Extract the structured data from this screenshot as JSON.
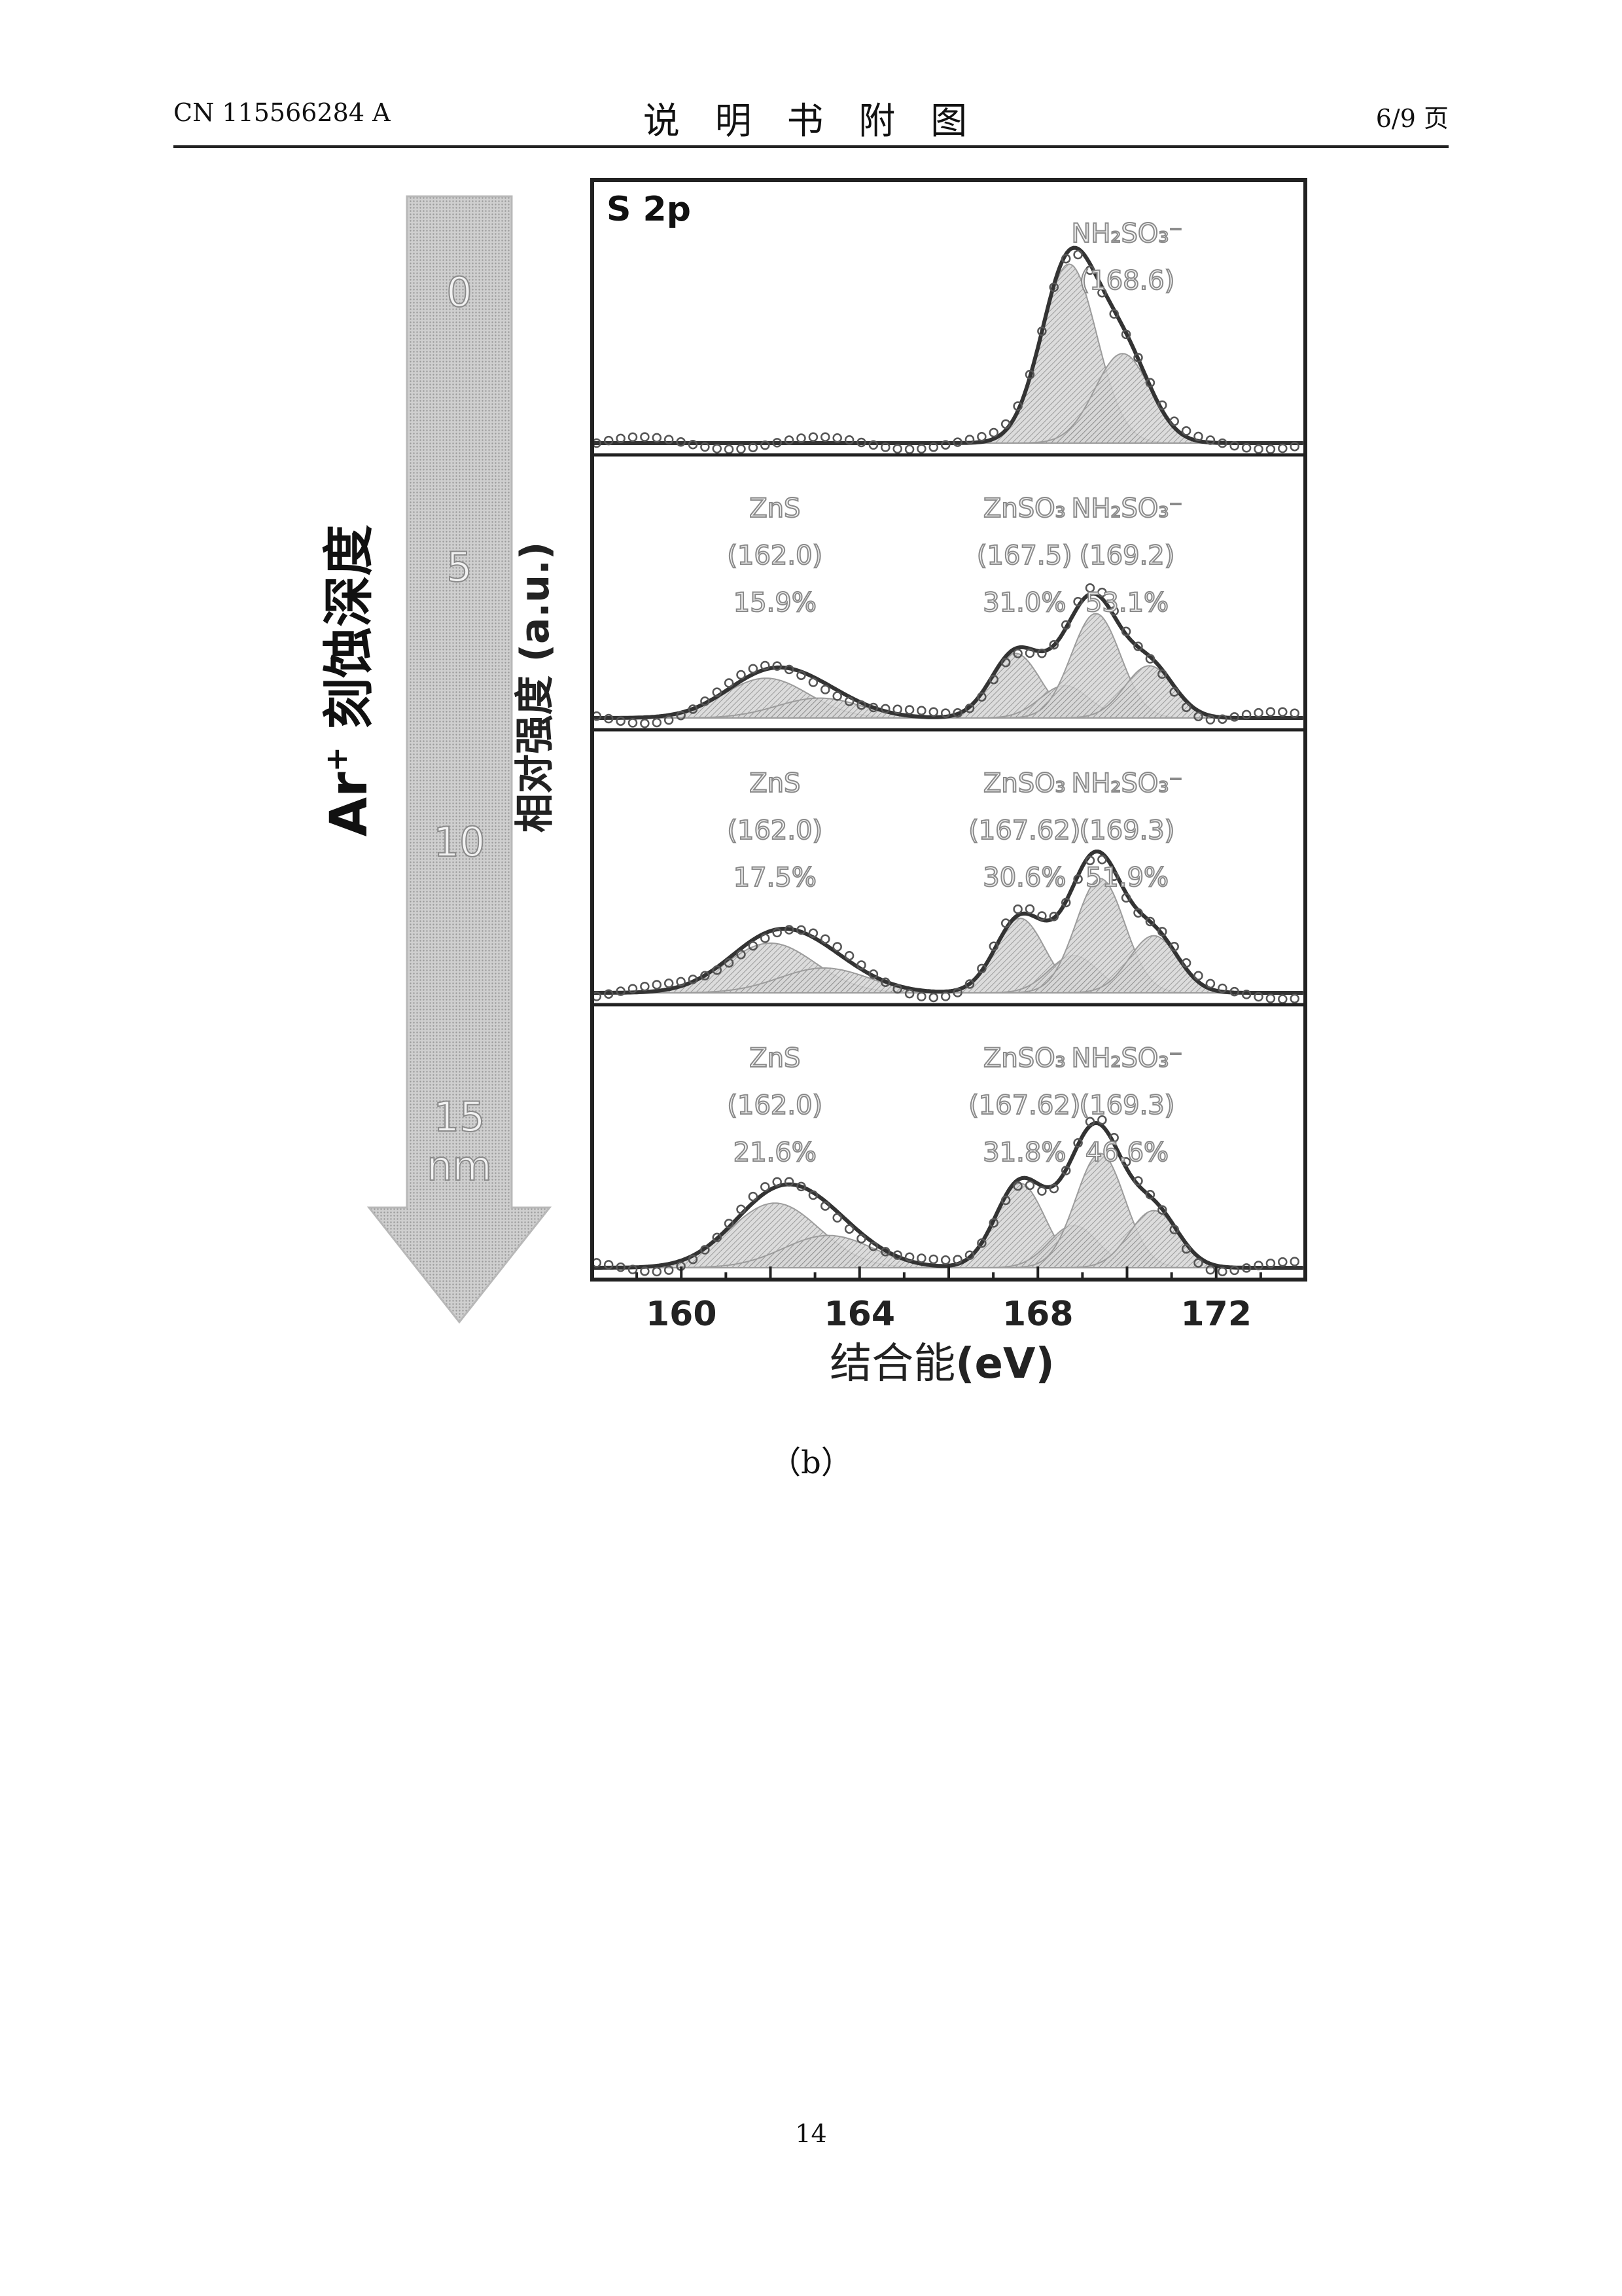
{
  "header": {
    "doc_number": "CN 115566284 A",
    "section_title": "说 明 书 附 图",
    "page_of": "6/9 页"
  },
  "figure": {
    "depth_axis": {
      "label_prefix": "Ar",
      "label_sup": "+",
      "label_suffix": " 刻蚀深度",
      "depth_values": [
        "0",
        "5",
        "10",
        "15"
      ],
      "depth_unit": "nm"
    },
    "caption": "（b）"
  },
  "page_number": "14",
  "chart_data": {
    "type": "line",
    "spectrum_label": "S 2p",
    "xlabel_text": "结合能",
    "xlabel_unit": "(eV)",
    "ylabel": "相对强度 (a.u.)",
    "xlim": [
      158,
      174
    ],
    "xticks": [
      "160",
      "164",
      "168",
      "172"
    ],
    "y_ticks_shown": false,
    "panels": [
      {
        "depth": "0",
        "components": [
          {
            "name": "NH₂SO₃⁻",
            "position": "(168.6)",
            "percent": ""
          }
        ],
        "peaks": [
          {
            "center": 168.7,
            "height": 0.72,
            "width": 0.62
          },
          {
            "center": 169.9,
            "height": 0.36,
            "width": 0.62
          }
        ]
      },
      {
        "depth": "5",
        "components": [
          {
            "name": "ZnS",
            "position": "(162.0)",
            "percent": "15.9%"
          },
          {
            "name": "ZnSO₃",
            "position": "(167.5)",
            "percent": "31.0%"
          },
          {
            "name": "NH₂SO₃⁻",
            "position": "(169.2)",
            "percent": "53.1%"
          }
        ],
        "peaks": [
          {
            "center": 161.9,
            "height": 0.16,
            "width": 0.95
          },
          {
            "center": 163.1,
            "height": 0.08,
            "width": 0.95
          },
          {
            "center": 167.5,
            "height": 0.26,
            "width": 0.55
          },
          {
            "center": 168.6,
            "height": 0.13,
            "width": 0.55
          },
          {
            "center": 169.3,
            "height": 0.42,
            "width": 0.55
          },
          {
            "center": 170.5,
            "height": 0.21,
            "width": 0.55
          }
        ]
      },
      {
        "depth": "10",
        "components": [
          {
            "name": "ZnS",
            "position": "(162.0)",
            "percent": "17.5%"
          },
          {
            "name": "ZnSO₃",
            "position": "(167.62)",
            "percent": "30.6%"
          },
          {
            "name": "NH₂SO₃⁻",
            "position": "(169.3)",
            "percent": "51.9%"
          }
        ],
        "peaks": [
          {
            "center": 162.0,
            "height": 0.2,
            "width": 1.0
          },
          {
            "center": 163.2,
            "height": 0.1,
            "width": 1.0
          },
          {
            "center": 167.6,
            "height": 0.3,
            "width": 0.55
          },
          {
            "center": 168.8,
            "height": 0.15,
            "width": 0.55
          },
          {
            "center": 169.4,
            "height": 0.46,
            "width": 0.55
          },
          {
            "center": 170.6,
            "height": 0.23,
            "width": 0.55
          }
        ]
      },
      {
        "depth": "15",
        "components": [
          {
            "name": "ZnS",
            "position": "(162.0)",
            "percent": "21.6%"
          },
          {
            "name": "ZnSO₃",
            "position": "(167.62)",
            "percent": "31.8%"
          },
          {
            "name": "NH₂SO₃⁻",
            "position": "(169.3)",
            "percent": "46.6%"
          }
        ],
        "peaks": [
          {
            "center": 162.1,
            "height": 0.26,
            "width": 1.0
          },
          {
            "center": 163.3,
            "height": 0.13,
            "width": 1.0
          },
          {
            "center": 167.6,
            "height": 0.34,
            "width": 0.55
          },
          {
            "center": 168.8,
            "height": 0.17,
            "width": 0.55
          },
          {
            "center": 169.4,
            "height": 0.46,
            "width": 0.55
          },
          {
            "center": 170.6,
            "height": 0.23,
            "width": 0.55
          }
        ]
      }
    ]
  }
}
